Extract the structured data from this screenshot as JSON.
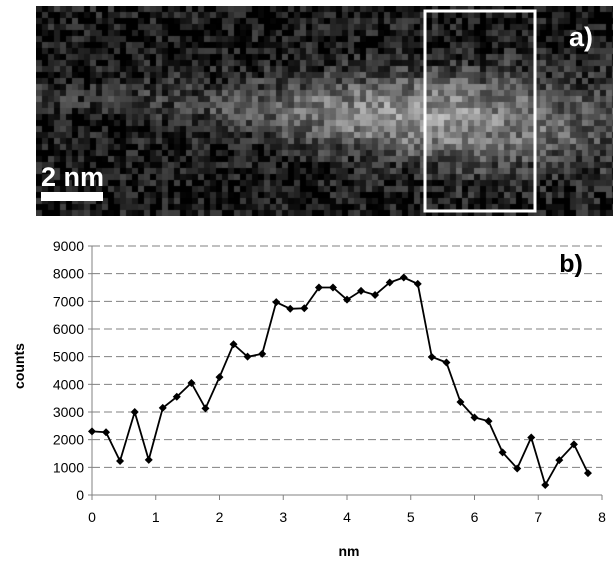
{
  "micrograph": {
    "panel_label": "a)",
    "scale_bar_label": "2 nm"
  },
  "chart_data": {
    "type": "line",
    "panel_label": "b)",
    "title": "",
    "xlabel": "nm",
    "ylabel": "counts",
    "xlim": [
      0,
      8
    ],
    "ylim": [
      0,
      9000
    ],
    "x_ticks": [
      "0",
      "1",
      "2",
      "3",
      "4",
      "5",
      "6",
      "7",
      "8"
    ],
    "y_ticks": [
      "0",
      "1000",
      "2000",
      "3000",
      "4000",
      "5000",
      "6000",
      "7000",
      "8000",
      "9000"
    ],
    "grid": "horizontal dashed",
    "legend": "none",
    "series": [
      {
        "x": [
          0.0,
          0.22,
          0.44,
          0.67,
          0.89,
          1.11,
          1.33,
          1.56,
          1.78,
          2.0,
          2.22,
          2.44,
          2.67,
          2.89,
          3.11,
          3.33,
          3.56,
          3.78,
          4.0,
          4.22,
          4.44,
          4.67,
          4.89,
          5.11,
          5.33,
          5.56,
          5.78,
          6.0,
          6.22,
          6.44,
          6.67,
          6.89,
          7.11,
          7.33,
          7.56,
          7.78
        ],
        "y": [
          2300,
          2270,
          1230,
          3000,
          1270,
          3150,
          3550,
          4050,
          3130,
          4260,
          5450,
          5000,
          5100,
          6970,
          6730,
          6750,
          7500,
          7500,
          7060,
          7380,
          7230,
          7680,
          7860,
          7630,
          4990,
          4790,
          3360,
          2800,
          2670,
          1540,
          960,
          2080,
          360,
          1260,
          1830,
          790
        ]
      }
    ],
    "colors": {
      "line": "#000000",
      "grid": "#808080",
      "axis": "#808080"
    }
  }
}
